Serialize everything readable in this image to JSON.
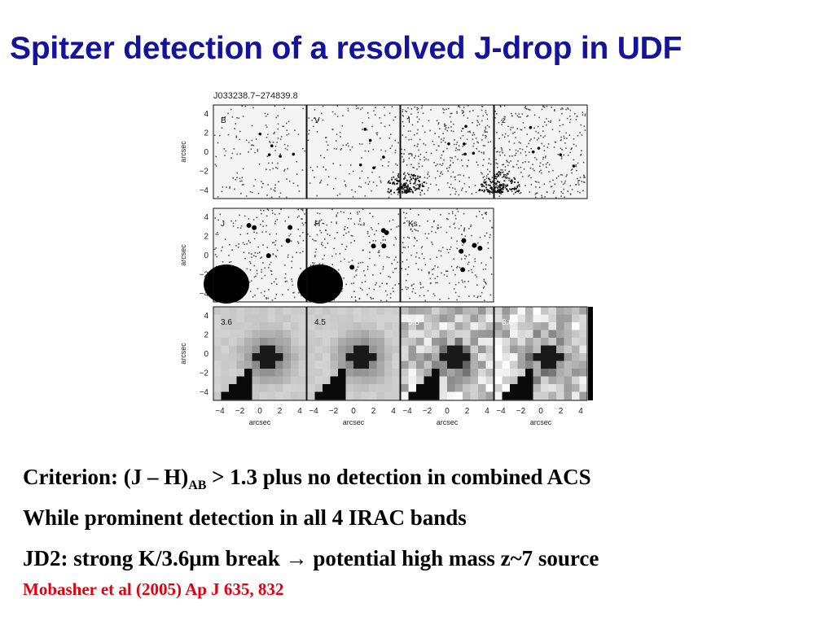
{
  "slide": {
    "title": "Spitzer detection of a resolved J-drop in UDF",
    "figure": {
      "object_id": "J033238.7−274839.8",
      "rows": [
        {
          "panels": [
            "B",
            "V",
            "I",
            "z"
          ],
          "style": "optical"
        },
        {
          "panels": [
            "J",
            "H",
            "Ks"
          ],
          "style": "nir"
        },
        {
          "panels": [
            "3.6",
            "4.5",
            "5.8",
            "8.0"
          ],
          "style": "irac"
        }
      ],
      "axis_label": "arcsec",
      "yticks": [
        "4",
        "2",
        "0",
        "−2",
        "−4"
      ],
      "xticks": [
        "−4",
        "−2",
        "0",
        "2",
        "4"
      ]
    },
    "bullets": [
      {
        "prefix": "Criterion: (J – H)",
        "sub": "AB",
        "suffix": " > 1.3 plus no detection in combined ACS"
      },
      {
        "text": "While prominent detection in all 4 IRAC bands"
      },
      {
        "text": "JD2: strong K/3.6μm break → potential high mass z~7 source"
      }
    ],
    "reference": "Mobasher et al (2005) Ap J 635, 832"
  }
}
